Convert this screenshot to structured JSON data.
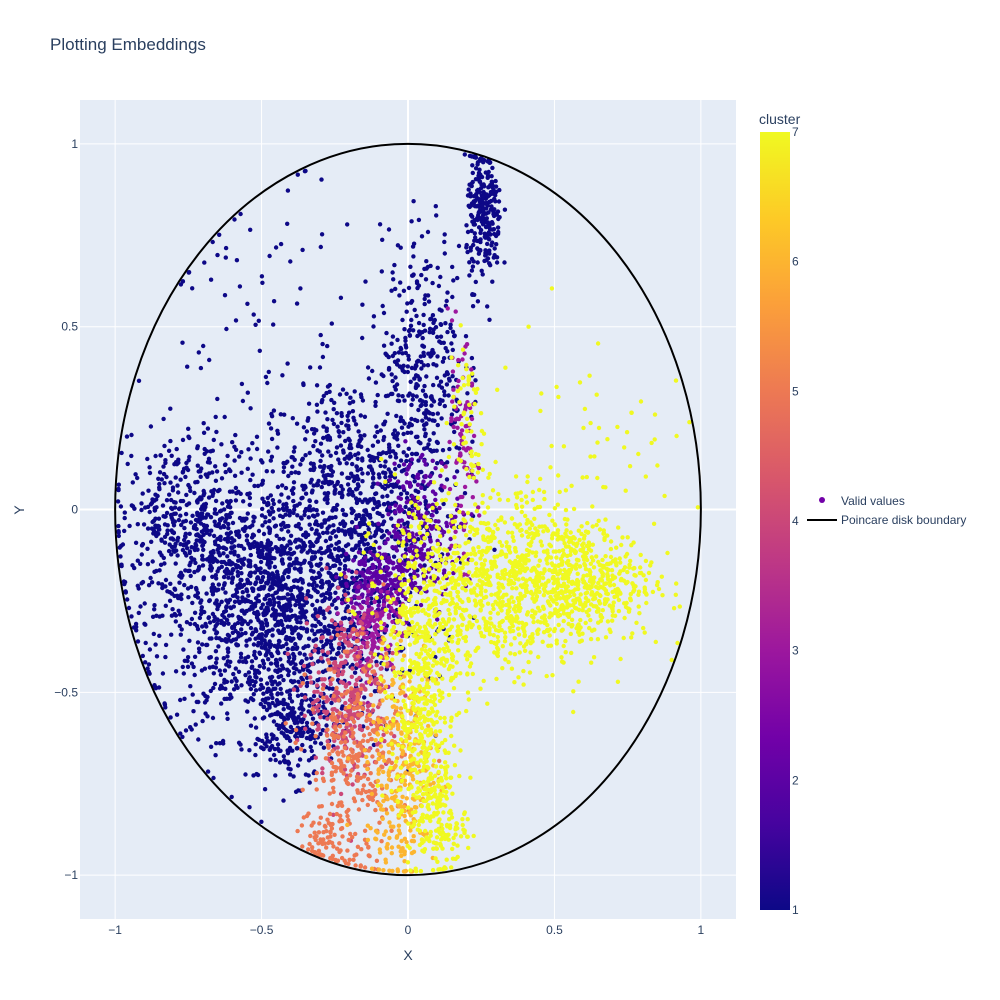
{
  "chart_data": {
    "type": "scatter",
    "title": "Plotting Embeddings",
    "xlabel": "X",
    "ylabel": "Y",
    "xlim": [
      -1.12,
      1.12
    ],
    "ylim": [
      -1.12,
      1.12
    ],
    "x_ticks": [
      -1,
      -0.5,
      0,
      0.5,
      1
    ],
    "x_tick_labels": [
      "−1",
      "−0.5",
      "0",
      "0.5",
      "1"
    ],
    "y_ticks": [
      -1,
      -0.5,
      0,
      0.5,
      1
    ],
    "y_tick_labels": [
      "−1",
      "−0.5",
      "0",
      "0.5",
      "1"
    ],
    "grid": true,
    "plot_background": "#e5ecf6",
    "colorbar": {
      "title": "cluster",
      "min": 1,
      "max": 7,
      "ticks": [
        1,
        2,
        3,
        4,
        5,
        6,
        7
      ],
      "tick_labels": [
        "1",
        "2",
        "3",
        "4",
        "5",
        "6",
        "7"
      ],
      "colorscale": [
        "#0d0887",
        "#46039f",
        "#7201a8",
        "#9c179e",
        "#bd3786",
        "#d8576b",
        "#ed7953",
        "#fb9f3a",
        "#fdca26",
        "#f0f921"
      ]
    },
    "legend": {
      "placement": "right",
      "entries": [
        {
          "name": "Valid values",
          "symbol": "marker",
          "color": "#7201a8"
        },
        {
          "name": "Poincare disk boundary",
          "symbol": "line",
          "color": "#000000"
        }
      ]
    },
    "series": [
      {
        "name": "Valid values",
        "kind": "markers",
        "note_points": "approximate point cloud; clusters summarised by centre, spread and count",
        "clusters": [
          {
            "cluster": 1,
            "cx": -0.45,
            "cy": -0.28,
            "sx": 0.2,
            "sy": 0.17,
            "n": 1600
          },
          {
            "cluster": 1,
            "cx": -0.2,
            "cy": 0.05,
            "sx": 0.15,
            "sy": 0.16,
            "n": 700
          },
          {
            "cluster": 1,
            "cx": 0.05,
            "cy": 0.4,
            "sx": 0.07,
            "sy": 0.18,
            "n": 350
          },
          {
            "cluster": 1,
            "cx": 0.26,
            "cy": 0.8,
            "sx": 0.03,
            "sy": 0.09,
            "n": 260
          },
          {
            "cluster": 1,
            "cx": -0.75,
            "cy": -0.03,
            "sx": 0.12,
            "sy": 0.12,
            "n": 450
          },
          {
            "cluster": 1,
            "cx": -0.4,
            "cy": -0.6,
            "sx": 0.06,
            "sy": 0.07,
            "n": 200
          },
          {
            "cluster": 1,
            "cx": -0.5,
            "cy": 0.55,
            "sx": 0.2,
            "sy": 0.18,
            "n": 70
          },
          {
            "cluster": 2,
            "cx": 0.05,
            "cy": -0.05,
            "sx": 0.07,
            "sy": 0.1,
            "n": 250
          },
          {
            "cluster": 2,
            "cx": -0.1,
            "cy": -0.2,
            "sx": 0.06,
            "sy": 0.05,
            "n": 200
          },
          {
            "cluster": 3,
            "cx": 0.18,
            "cy": 0.15,
            "sx": 0.03,
            "sy": 0.14,
            "n": 90
          },
          {
            "cluster": 3,
            "cx": -0.12,
            "cy": -0.33,
            "sx": 0.05,
            "sy": 0.06,
            "n": 160
          },
          {
            "cluster": 4,
            "cx": -0.2,
            "cy": -0.5,
            "sx": 0.07,
            "sy": 0.12,
            "n": 320
          },
          {
            "cluster": 5,
            "cx": -0.18,
            "cy": -0.7,
            "sx": 0.08,
            "sy": 0.15,
            "n": 320
          },
          {
            "cluster": 5,
            "cx": -0.28,
            "cy": -0.9,
            "sx": 0.05,
            "sy": 0.04,
            "n": 70
          },
          {
            "cluster": 6,
            "cx": -0.02,
            "cy": -0.72,
            "sx": 0.06,
            "sy": 0.15,
            "n": 320
          },
          {
            "cluster": 7,
            "cx": 0.05,
            "cy": -0.5,
            "sx": 0.06,
            "sy": 0.2,
            "n": 500
          },
          {
            "cluster": 7,
            "cx": 0.3,
            "cy": -0.2,
            "sx": 0.18,
            "sy": 0.12,
            "n": 900
          },
          {
            "cluster": 7,
            "cx": 0.6,
            "cy": -0.2,
            "sx": 0.12,
            "sy": 0.08,
            "n": 450
          },
          {
            "cluster": 7,
            "cx": 0.1,
            "cy": -0.85,
            "sx": 0.05,
            "sy": 0.07,
            "n": 150
          },
          {
            "cluster": 7,
            "cx": 0.6,
            "cy": 0.1,
            "sx": 0.18,
            "sy": 0.22,
            "n": 70
          },
          {
            "cluster": 7,
            "cx": 0.2,
            "cy": 0.25,
            "sx": 0.03,
            "sy": 0.12,
            "n": 60
          }
        ]
      },
      {
        "name": "Poincare disk boundary",
        "kind": "line",
        "shape": "circle",
        "center": [
          0,
          0
        ],
        "radius": 1,
        "color": "#000000"
      }
    ]
  }
}
